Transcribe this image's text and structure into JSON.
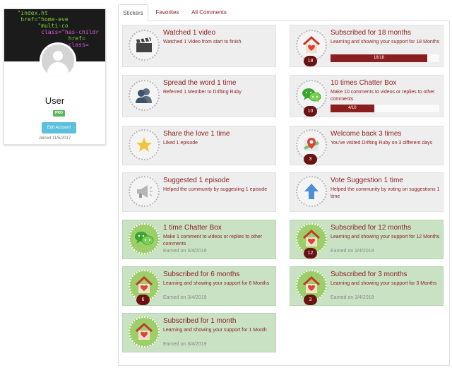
{
  "profile": {
    "cover_code": [
      "\"index.ht",
      "href=\"home-eve",
      "\"multi-co",
      "class=\"has-childr",
      "href=",
      "class="
    ],
    "name": "User",
    "badge": "PRO",
    "edit_label": "Edit Account",
    "joined": "Joined 11/5/2017"
  },
  "tabs": [
    "Stickers",
    "Favorites",
    "All Comments"
  ],
  "cards": [
    {
      "title": "Watched 1 video",
      "desc": "Watched 1 Video from start to finish",
      "icon": "clapperboard-icon"
    },
    {
      "title": "Subscribed for 18 months",
      "desc": "Learning and showing your support for 18 Months",
      "count": "18",
      "progress_label": "16/18",
      "progress": 0.889,
      "icon": "house-heart-icon"
    },
    {
      "title": "Spread the word 1 time",
      "desc": "Referred 1 Member to Drifting Ruby",
      "icon": "users-icon"
    },
    {
      "title": "10 times Chatter Box",
      "desc": "Make 10 comments to videos or replies to other comments",
      "count": "10",
      "progress_label": "4/10",
      "progress": 0.4,
      "icon": "chat-bubbles-icon"
    },
    {
      "title": "Share the love 1 time",
      "desc": "Liked 1 episode",
      "icon": "star-icon"
    },
    {
      "title": "Welcome back 3 times",
      "desc": "You've visited Drifting Ruby on 3 different days",
      "count": "3",
      "icon": "map-pin-icon"
    },
    {
      "title": "Suggested 1 episode",
      "desc": "Helped the community by suggesting 1 episode",
      "icon": "megaphone-icon"
    },
    {
      "title": "Vote Suggestion 1 time",
      "desc": "Helped the community by voting on suggestions 1 time",
      "icon": "arrow-up-icon"
    },
    {
      "title": "1 time Chatter Box",
      "desc": "Make 1 comment to videos or replies to other comments",
      "earned": "Earned on 3/4/2019",
      "icon": "chat-bubbles-icon"
    },
    {
      "title": "Subscribed for 12 months",
      "desc": "Learning and showing your support for 12 Months",
      "count": "12",
      "earned": "Earned on 3/4/2019",
      "icon": "house-heart-icon"
    },
    {
      "title": "Subscribed for 6 months",
      "desc": "Learning and showing your support for 6 Months",
      "count": "6",
      "earned": "Earned on 3/4/2019",
      "icon": "house-heart-icon"
    },
    {
      "title": "Subscribed for 3 months",
      "desc": "Learning and showing your support for 3 Months",
      "count": "3",
      "earned": "Earned on 3/4/2019",
      "icon": "house-heart-icon"
    },
    {
      "title": "Subscribed for 1 month",
      "desc": "Learning and showing your support for 1 Month",
      "earned": "Earned on 3/4/2019",
      "icon": "house-heart-icon"
    }
  ],
  "colors": {
    "accent": "#8b1e1e",
    "earned_bg": "#c9e2c4",
    "pro": "#5cb85c",
    "edit": "#5bc0de"
  }
}
